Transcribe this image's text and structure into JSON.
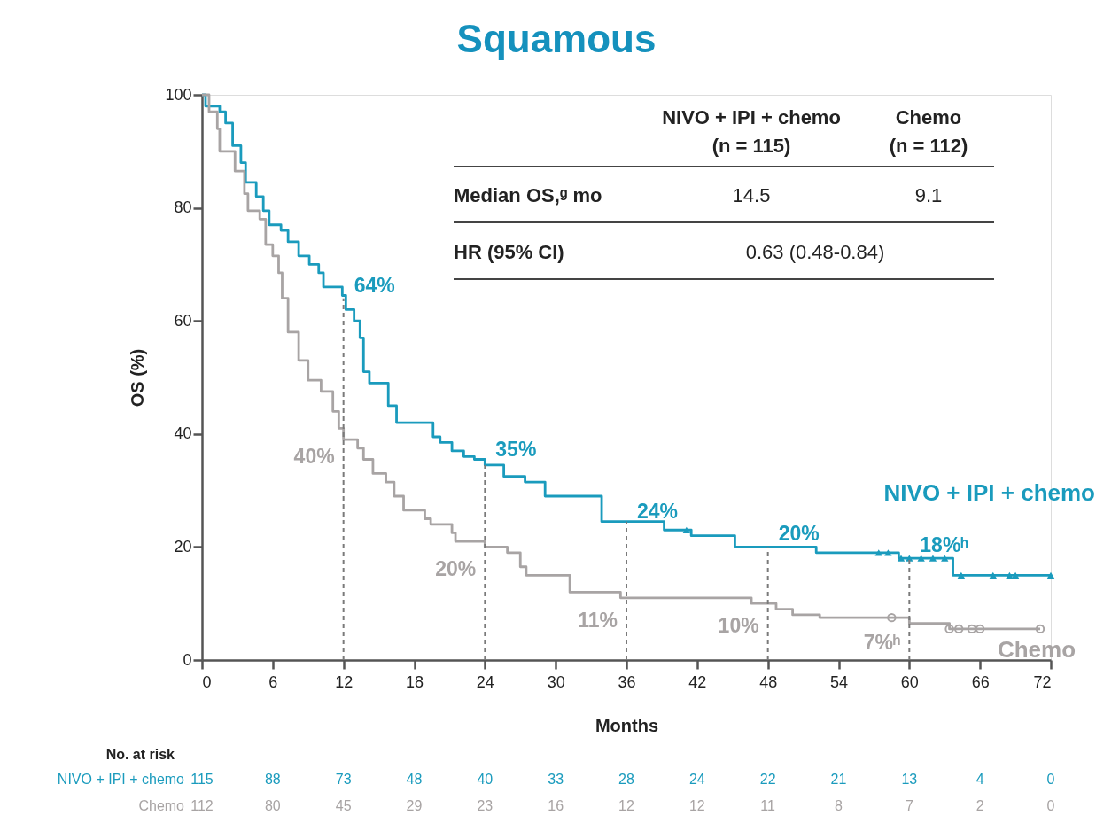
{
  "chart_data": {
    "type": "step",
    "title": "Squamous",
    "xlabel": "Months",
    "ylabel": "OS (%)",
    "xlim": [
      0,
      72
    ],
    "xticks": [
      0,
      6,
      12,
      18,
      24,
      30,
      36,
      42,
      48,
      54,
      60,
      66,
      72
    ],
    "ylim": [
      0,
      100
    ],
    "yticks": [
      0,
      20,
      40,
      60,
      80,
      100
    ],
    "series": [
      {
        "name": "NIVO + IPI + chemo",
        "color": "#1a9bbd",
        "x": [
          0,
          0.3,
          1.5,
          2,
          2.6,
          3.3,
          3.7,
          4.6,
          5.2,
          5.7,
          6.7,
          7.3,
          8.2,
          9.1,
          9.9,
          10.3,
          11.9,
          12.2,
          12.9,
          13.4,
          13.7,
          14.2,
          15.8,
          16.5,
          19.6,
          20.2,
          21.2,
          22.2,
          23.1,
          24,
          25.6,
          27.4,
          29.1,
          33.9,
          39.2,
          41.5,
          45.2,
          52.1,
          59.1,
          63.7,
          72
        ],
        "values": [
          100,
          98,
          97,
          95,
          91,
          88,
          84.5,
          82,
          79.5,
          77,
          76,
          74,
          71.5,
          70,
          68.5,
          66,
          64.5,
          62,
          60,
          57,
          51,
          49,
          45,
          42,
          39.5,
          38.5,
          37,
          36,
          35.5,
          34.5,
          32.5,
          31.5,
          29,
          24.5,
          23,
          22,
          20,
          19,
          18,
          15,
          15
        ]
      },
      {
        "name": "Chemo",
        "color": "#a8a4a4",
        "x": [
          0,
          0.6,
          1.3,
          1.5,
          2.8,
          3.6,
          3.9,
          4.9,
          5.4,
          6,
          6.5,
          6.8,
          7.3,
          8.2,
          9,
          10.1,
          11.1,
          11.6,
          12,
          13.2,
          13.7,
          14.5,
          15.6,
          16.3,
          17.1,
          18.9,
          19.4,
          21.2,
          21.5,
          24,
          25.9,
          27,
          27.5,
          31.2,
          35.5,
          46.6,
          48.7,
          50.1,
          52.4,
          60,
          63.4,
          71.1
        ],
        "values": [
          100,
          97,
          94,
          90,
          86.5,
          82.5,
          79.5,
          78,
          73.5,
          71.5,
          68.5,
          64,
          58,
          53,
          49.5,
          47.5,
          44,
          41,
          39,
          37.5,
          35.5,
          33,
          31.5,
          29,
          26.5,
          25,
          24,
          22.5,
          21,
          20,
          19,
          16.5,
          15,
          12,
          11,
          10,
          9,
          8,
          7.5,
          6.5,
          5.5,
          5.5
        ]
      },
      {
        "color": "#1a9bbd",
        "type": "scatter",
        "marker": "triangle",
        "x": [
          41.1,
          57.4,
          58.2,
          59.3,
          60,
          61,
          62,
          63,
          64.4,
          67.1,
          68.5,
          69,
          72
        ],
        "values": [
          23,
          19,
          19,
          18,
          18,
          18,
          18,
          18,
          15,
          15,
          15,
          15,
          15
        ]
      },
      {
        "color": "#a8a4a4",
        "type": "scatter",
        "marker": "circle",
        "x": [
          58.5,
          63.4,
          64.2,
          65.3,
          66,
          71.1
        ],
        "values": [
          7.5,
          5.5,
          5.5,
          5.5,
          5.5,
          5.5
        ]
      },
      {
        "color": "#7a7a7a",
        "type": "line",
        "line_style": "dashed",
        "x": [
          12,
          12
        ],
        "values": [
          0,
          64
        ]
      },
      {
        "color": "#7a7a7a",
        "type": "line",
        "line_style": "dashed",
        "x": [
          24,
          24
        ],
        "values": [
          0,
          34.5
        ]
      },
      {
        "color": "#7a7a7a",
        "type": "line",
        "line_style": "dashed",
        "x": [
          36,
          36
        ],
        "values": [
          0,
          24.5
        ]
      },
      {
        "color": "#7a7a7a",
        "type": "line",
        "line_style": "dashed",
        "x": [
          48,
          48
        ],
        "values": [
          0,
          20
        ]
      },
      {
        "color": "#7a7a7a",
        "type": "line",
        "line_style": "dashed",
        "x": [
          60,
          60
        ],
        "values": [
          0,
          18
        ]
      }
    ],
    "annotations": [
      "NIVO + IPI + chemo",
      "(n = 115)",
      "Chemo",
      "(n = 112)",
      "Median OS,ᵍ mo",
      "14.5",
      "9.1",
      "HR (95% CI)",
      "0.63 (0.48-0.84)",
      "No. at risk",
      "NIVO + IPI + chemo",
      "115",
      "88",
      "73",
      "48",
      "40",
      "33",
      "28",
      "24",
      "22",
      "21",
      "13",
      "4",
      "0",
      "Chemo",
      "112",
      "80",
      "45",
      "29",
      "23",
      "16",
      "12",
      "12",
      "11",
      "8",
      "7",
      "2",
      "0",
      {
        "text": "64%",
        "x": 12,
        "y": 64
      },
      {
        "text": "40%",
        "x": 12,
        "y": 40
      },
      {
        "text": "35%",
        "x": 24,
        "y": 35
      },
      {
        "text": "20%",
        "x": 24,
        "y": 20
      },
      {
        "text": "24%",
        "x": 36,
        "y": 24
      },
      {
        "text": "11%",
        "x": 36,
        "y": 11
      },
      {
        "text": "20%",
        "x": 48,
        "y": 20
      },
      {
        "text": "10%",
        "x": 48,
        "y": 10
      },
      {
        "text": "18%ʰ",
        "x": 60,
        "y": 18
      },
      {
        "text": "7%ʰ",
        "x": 60,
        "y": 7
      }
    ]
  }
}
